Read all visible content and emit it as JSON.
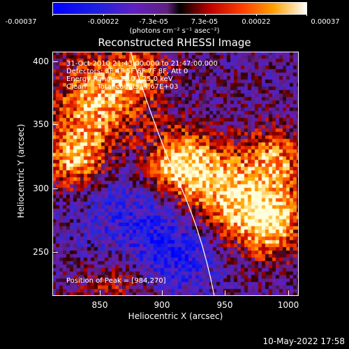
{
  "colorbar": {
    "ticks": [
      "-0.00037",
      "-0.00022",
      "-7.3e-05",
      "7.3e-05",
      "0.00022",
      "0.00037"
    ],
    "units": "(photons cm⁻² s⁻¹ asec⁻²)"
  },
  "title": "Reconstructed RHESSI Image",
  "info": {
    "time": "31-Oct-2010 21:43:00.000 to 21:47:00.000",
    "detectors": "Detectors: 3F 4F 5F 6F 7F 8F, Att 0",
    "energy": "Energy Range: 12.0 - 25.0 keV",
    "clean": "Clean     Total counts: 4.67E+03",
    "peak": "Position of Peak = [984,270]"
  },
  "axes": {
    "xlabel": "Heliocentric X (arcsec)",
    "ylabel": "Heliocentric Y (arcsec)",
    "xticks": [
      "850",
      "900",
      "950",
      "1000"
    ],
    "yticks": [
      "400",
      "350",
      "300",
      "250"
    ]
  },
  "date": "10-May-2022 17:58"
}
